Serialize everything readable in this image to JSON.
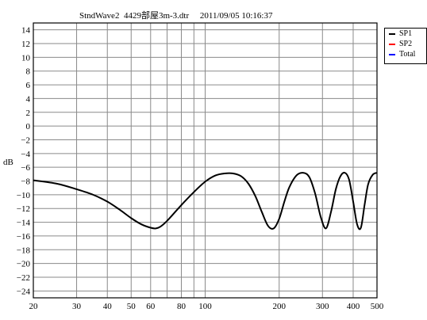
{
  "title_text": "StndWave2  4429部屋3m-3.dtr     2011/09/05 10:16:37",
  "legend": [
    {
      "label": "SP1",
      "color": "#000000"
    },
    {
      "label": "SP2",
      "color": "#ff0000"
    },
    {
      "label": "Total",
      "color": "#0000ff"
    }
  ],
  "chart_data": {
    "type": "line",
    "ylabel": "dB",
    "xscale": "log",
    "xlim": [
      20,
      500
    ],
    "ylim": [
      -25,
      15
    ],
    "x_ticks": [
      20,
      30,
      40,
      50,
      60,
      70,
      80,
      90,
      100,
      200,
      300,
      400,
      500
    ],
    "x_tick_labels": [
      "20",
      "30",
      "40",
      "50",
      "60",
      "",
      "80",
      "",
      "100",
      "200",
      "300",
      "400",
      "500"
    ],
    "y_ticks": [
      14,
      12,
      10,
      8,
      6,
      4,
      2,
      0,
      -2,
      -4,
      -6,
      -8,
      -10,
      -12,
      -14,
      -16,
      -18,
      -20,
      -22,
      -24
    ],
    "y_tick_labels": [
      "14",
      "12",
      "10",
      "8",
      "6",
      "4",
      "2",
      "0",
      "−2",
      "−4",
      "−6",
      "−8",
      "−10",
      "−12",
      "−14",
      "−16",
      "−18",
      "−20",
      "−22",
      "−24"
    ],
    "grid": true,
    "series": [
      {
        "name": "SP1",
        "color": "#000000",
        "x": [
          20,
          25,
          30,
          35,
          40,
          45,
          50,
          55,
          60,
          63,
          66,
          70,
          80,
          90,
          100,
          110,
          120,
          130,
          140,
          150,
          160,
          170,
          180,
          190,
          200,
          210,
          220,
          235,
          250,
          265,
          280,
          295,
          310,
          325,
          340,
          355,
          370,
          385,
          400,
          415,
          430,
          445,
          460,
          480,
          500
        ],
        "y": [
          -7.9,
          -8.4,
          -9.2,
          -10.0,
          -11.0,
          -12.2,
          -13.4,
          -14.3,
          -14.8,
          -14.9,
          -14.6,
          -13.8,
          -11.5,
          -9.6,
          -8.1,
          -7.2,
          -6.9,
          -6.9,
          -7.3,
          -8.4,
          -10.2,
          -12.5,
          -14.5,
          -14.9,
          -13.5,
          -11.0,
          -8.9,
          -7.2,
          -6.8,
          -7.4,
          -9.8,
          -13.2,
          -14.9,
          -12.5,
          -9.2,
          -7.3,
          -6.8,
          -7.8,
          -11.0,
          -14.3,
          -14.8,
          -11.5,
          -8.5,
          -7.1,
          -6.8
        ]
      }
    ]
  }
}
